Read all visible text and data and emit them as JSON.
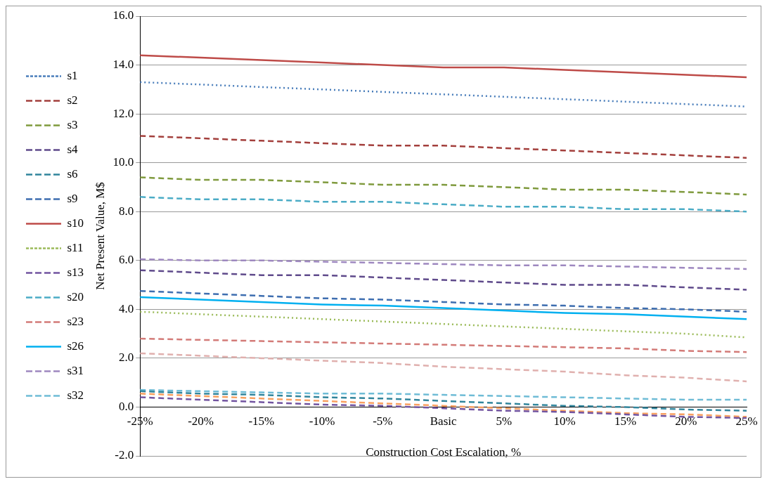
{
  "chart_data": {
    "type": "line",
    "xlabel": "Construction Cost Escalation, %",
    "ylabel": "Net Present Value, M$",
    "categories": [
      "-25%",
      "-20%",
      "-15%",
      "-10%",
      "-5%",
      "Basic",
      "5%",
      "10%",
      "15%",
      "20%",
      "25%"
    ],
    "ylim": [
      -2,
      16
    ],
    "yticks": [
      {
        "value": -2,
        "label": "-2.0"
      },
      {
        "value": 0,
        "label": "0.0"
      },
      {
        "value": 2,
        "label": "2.0"
      },
      {
        "value": 4,
        "label": "4.0"
      },
      {
        "value": 6,
        "label": "6.0"
      },
      {
        "value": 8,
        "label": "8.0"
      },
      {
        "value": 10,
        "label": "10.0"
      },
      {
        "value": 12,
        "label": "12.0"
      },
      {
        "value": 14,
        "label": "14.0"
      },
      {
        "value": 16,
        "label": "16.0"
      }
    ],
    "grid": "y",
    "legend": "left",
    "marker": "none",
    "series": [
      {
        "name": "s1",
        "color": "#4a7ebb",
        "line_style": "dotted",
        "values": [
          13.3,
          13.2,
          13.1,
          13.0,
          12.9,
          12.8,
          12.7,
          12.6,
          12.5,
          12.4,
          12.3
        ]
      },
      {
        "name": "s2",
        "color": "#a33f3c",
        "line_style": "dashed",
        "values": [
          11.1,
          11.0,
          10.9,
          10.8,
          10.7,
          10.7,
          10.6,
          10.5,
          10.4,
          10.3,
          10.2
        ]
      },
      {
        "name": "s3",
        "color": "#7f9a3d",
        "line_style": "dashed",
        "values": [
          9.4,
          9.3,
          9.3,
          9.2,
          9.1,
          9.1,
          9.0,
          8.9,
          8.9,
          8.8,
          8.7
        ]
      },
      {
        "name": "s4",
        "color": "#5f4a8b",
        "line_style": "dashed",
        "values": [
          5.6,
          5.5,
          5.4,
          5.4,
          5.3,
          5.2,
          5.1,
          5.0,
          5.0,
          4.9,
          4.8
        ]
      },
      {
        "name": "s6",
        "color": "#31859c",
        "line_style": "dashed",
        "values": [
          0.65,
          0.55,
          0.5,
          0.4,
          0.35,
          0.25,
          0.15,
          0.05,
          0,
          -0.1,
          -0.15
        ]
      },
      {
        "name": "s9",
        "color": "#3e6eb0",
        "line_style": "dashed",
        "values": [
          4.75,
          4.65,
          4.55,
          4.45,
          4.4,
          4.3,
          4.2,
          4.15,
          4.05,
          4.0,
          3.9
        ]
      },
      {
        "name": "s10",
        "color": "#be4b48",
        "line_style": "solid",
        "values": [
          14.4,
          14.3,
          14.2,
          14.1,
          14.0,
          13.9,
          13.9,
          13.8,
          13.7,
          13.6,
          13.5
        ]
      },
      {
        "name": "s11",
        "color": "#9bbb59",
        "line_style": "dotted",
        "values": [
          3.9,
          3.8,
          3.7,
          3.6,
          3.5,
          3.4,
          3.3,
          3.2,
          3.1,
          3.0,
          2.85
        ]
      },
      {
        "name": "s13",
        "color": "#7254a0",
        "line_style": "dashed",
        "values": [
          0.4,
          0.3,
          0.2,
          0.1,
          0.05,
          -0.05,
          -0.15,
          -0.2,
          -0.3,
          -0.4,
          -0.45
        ]
      },
      {
        "name": "s20",
        "color": "#4bacc6",
        "line_style": "dashed",
        "values": [
          8.6,
          8.5,
          8.5,
          8.4,
          8.4,
          8.3,
          8.2,
          8.2,
          8.1,
          8.1,
          8.0
        ]
      },
      {
        "name": "s23",
        "color": "#d37b78",
        "line_style": "dashed",
        "values": [
          2.8,
          2.75,
          2.7,
          2.65,
          2.6,
          2.55,
          2.5,
          2.45,
          2.4,
          2.3,
          2.25
        ]
      },
      {
        "name": "s26",
        "color": "#00b0f0",
        "line_style": "solid",
        "values": [
          4.5,
          4.4,
          4.3,
          4.2,
          4.15,
          4.05,
          3.95,
          3.85,
          3.8,
          3.7,
          3.6
        ]
      },
      {
        "name": "s31",
        "color": "#9e88c0",
        "line_style": "dashed",
        "values": [
          6.05,
          6.0,
          6.0,
          5.95,
          5.9,
          5.85,
          5.8,
          5.8,
          5.75,
          5.7,
          5.65
        ]
      },
      {
        "name": "s32",
        "color": "#6fbcd6",
        "line_style": "dashed",
        "values": [
          0.7,
          0.65,
          0.6,
          0.55,
          0.55,
          0.5,
          0.45,
          0.4,
          0.35,
          0.3,
          0.3
        ]
      },
      {
        "color": "#e0b0ae",
        "line_style": "dashed",
        "values": [
          2.2,
          2.1,
          2.0,
          1.9,
          1.8,
          1.65,
          1.55,
          1.45,
          1.3,
          1.2,
          1.05
        ]
      },
      {
        "color": "#f8a060",
        "line_style": "dashed",
        "values": [
          0.55,
          0.45,
          0.35,
          0.25,
          0.15,
          0.05,
          -0.05,
          -0.15,
          -0.25,
          -0.3,
          -0.4
        ]
      }
    ]
  }
}
